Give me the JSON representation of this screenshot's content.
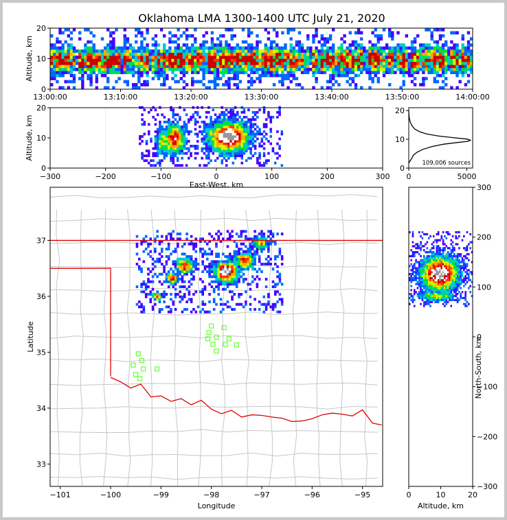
{
  "title": "Oklahoma LMA 1300-1400 UTC July 21, 2020",
  "colors": {
    "state_border": "#e00000",
    "county_lines": "#c6c6c6",
    "stations": "#66ff33",
    "density_scale": [
      "#4400ff",
      "#0066ff",
      "#00cccc",
      "#00dd44",
      "#ccff00",
      "#ffaa00",
      "#ff3300",
      "#cc0000",
      "#ffffff",
      "#999999"
    ]
  },
  "chart_data": [
    {
      "id": "time_height",
      "type": "heatmap",
      "ylabel": "Altitude, km",
      "xlim": [
        "13:00:00",
        "14:00:00"
      ],
      "ylim": [
        0,
        20
      ],
      "x_ticks": [
        "13:00:00",
        "13:10:00",
        "13:20:00",
        "13:30:00",
        "13:40:00",
        "13:50:00",
        "14:00:00"
      ],
      "y_ticks": [
        "0",
        "10",
        "20"
      ],
      "peak_altitude_km": 9.5
    },
    {
      "id": "ew_altitude",
      "type": "heatmap",
      "xlabel": "East-West, km",
      "ylabel": "Altitude, km",
      "xlim": [
        -300,
        300
      ],
      "ylim": [
        0,
        20
      ],
      "x_ticks": [
        "−300",
        "−200",
        "−100",
        "0",
        "100",
        "200",
        "300"
      ],
      "y_ticks": [
        "0",
        "10",
        "20"
      ],
      "clusters": [
        {
          "x_center_km": -100,
          "altitude_km": 8.5,
          "width_km": 24,
          "intensity": 0.5
        },
        {
          "x_center_km": -78,
          "altitude_km": 9.2,
          "width_km": 46,
          "intensity": 0.75
        },
        {
          "x_center_km": 20,
          "altitude_km": 10,
          "width_km": 80,
          "intensity": 1.0
        }
      ]
    },
    {
      "id": "altitude_histogram",
      "type": "line",
      "annotation": "109,006 sources",
      "xlim": [
        0,
        5500
      ],
      "ylim": [
        0,
        21
      ],
      "x_ticks": [
        "0",
        "5000"
      ],
      "y_ticks": [
        "0",
        "10",
        "20"
      ],
      "x": [
        0,
        200,
        400,
        700,
        1200,
        2000,
        3000,
        4200,
        5100,
        5300,
        5000,
        3800,
        2500,
        1500,
        900,
        500,
        300,
        150,
        60,
        20,
        0
      ],
      "y": [
        1.8,
        3,
        4.5,
        5.5,
        6.5,
        7.5,
        8.3,
        8.9,
        9.3,
        9.7,
        10.1,
        10.6,
        11.2,
        11.9,
        12.7,
        13.6,
        14.6,
        15.8,
        17,
        18.5,
        20
      ]
    },
    {
      "id": "map",
      "type": "heatmap",
      "xlabel": "Longitude",
      "ylabel": "Latitude",
      "xlim": [
        -101.2,
        -94.6
      ],
      "ylim": [
        32.6,
        37.95
      ],
      "x_ticks": [
        "−101",
        "−100",
        "−99",
        "−98",
        "−97",
        "−96",
        "−95"
      ],
      "y_ticks": [
        "33",
        "34",
        "35",
        "36",
        "37"
      ],
      "stations": [
        {
          "lon": -99.45,
          "lat": 34.97
        },
        {
          "lon": -99.38,
          "lat": 34.85
        },
        {
          "lon": -99.55,
          "lat": 34.77
        },
        {
          "lon": -99.35,
          "lat": 34.7
        },
        {
          "lon": -99.5,
          "lat": 34.6
        },
        {
          "lon": -99.42,
          "lat": 34.53
        },
        {
          "lon": -99.08,
          "lat": 34.7
        },
        {
          "lon": -98.0,
          "lat": 35.47
        },
        {
          "lon": -98.05,
          "lat": 35.35
        },
        {
          "lon": -98.07,
          "lat": 35.24
        },
        {
          "lon": -97.9,
          "lat": 35.27
        },
        {
          "lon": -97.75,
          "lat": 35.44
        },
        {
          "lon": -97.65,
          "lat": 35.24
        },
        {
          "lon": -97.97,
          "lat": 35.14
        },
        {
          "lon": -97.9,
          "lat": 35.02
        },
        {
          "lon": -97.72,
          "lat": 35.14
        },
        {
          "lon": -97.5,
          "lat": 35.13
        }
      ],
      "clusters": [
        {
          "lon": -99.1,
          "lat": 35.98,
          "r_deg": 0.1,
          "intensity": 0.55
        },
        {
          "lon": -98.8,
          "lat": 36.3,
          "r_deg": 0.12,
          "intensity": 0.7
        },
        {
          "lon": -98.55,
          "lat": 36.52,
          "r_deg": 0.16,
          "intensity": 0.75
        },
        {
          "lon": -97.72,
          "lat": 36.42,
          "r_deg": 0.22,
          "intensity": 1.0
        },
        {
          "lon": -97.35,
          "lat": 36.62,
          "r_deg": 0.18,
          "intensity": 0.7
        },
        {
          "lon": -97.05,
          "lat": 36.93,
          "r_deg": 0.14,
          "intensity": 0.55
        }
      ]
    },
    {
      "id": "ns_altitude",
      "type": "heatmap",
      "xlabel": "Altitude, km",
      "ylabel": "North-South, km",
      "xlim": [
        0,
        20
      ],
      "ylim": [
        -300,
        300
      ],
      "x_ticks": [
        "0",
        "10",
        "20"
      ],
      "y_ticks": [
        "−300",
        "−200",
        "−100",
        "0",
        "100",
        "200",
        "300"
      ],
      "clusters": [
        {
          "altitude_km": 9.5,
          "y_center_km": 125,
          "height_km": 70,
          "intensity": 1.0
        },
        {
          "altitude_km": 8.5,
          "y_center_km": 80,
          "height_km": 20,
          "intensity": 0.5
        }
      ]
    }
  ]
}
